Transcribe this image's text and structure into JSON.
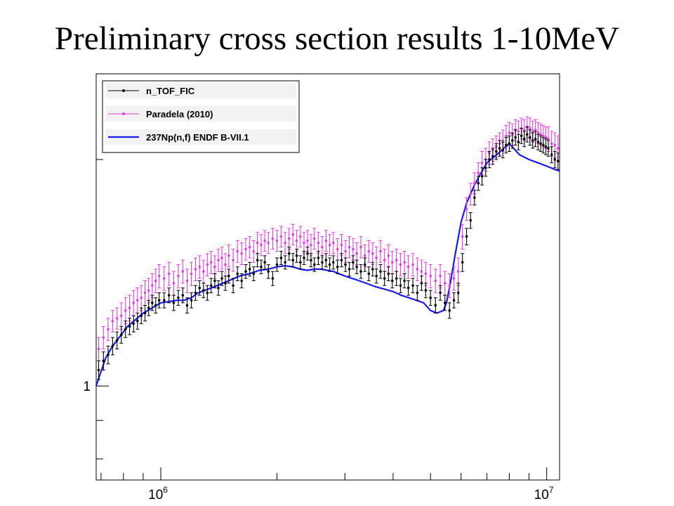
{
  "slide": {
    "title": "Preliminary cross section results 1-10MeV"
  },
  "chart_data": {
    "type": "scatter",
    "title": "Preliminary cross section results 1-10MeV",
    "xlabel": "",
    "ylabel": "",
    "x_scale": "log",
    "y_scale": "log",
    "xlim": [
      680000,
      10800000
    ],
    "ylim": [
      0.75,
      2.6
    ],
    "grid": false,
    "legend_position": "top-left",
    "x_tick_labels": [
      {
        "value": 1000000,
        "base": "10",
        "exp": "6"
      },
      {
        "value": 10000000,
        "base": "10",
        "exp": "7"
      }
    ],
    "y_tick_labels": [
      {
        "value": 1,
        "text": "1"
      }
    ],
    "legend": [
      {
        "name": "n_TOF_FIC",
        "color": "#000000",
        "marker": "point-errorbar"
      },
      {
        "name": "Paradela (2010)",
        "color": "#e040e0",
        "marker": "point-errorbar"
      },
      {
        "name": "237Np(n,f) ENDF B-VII.1",
        "color": "#1a1aee",
        "marker": "line"
      }
    ],
    "series": [
      {
        "name": "237Np(n,f) ENDF B-VII.1",
        "color": "#1a1aee",
        "style": "line",
        "x": [
          680000,
          700000,
          720000,
          750000,
          780000,
          820000,
          860000,
          900000,
          950000,
          1000000,
          1050000,
          1100000,
          1150000,
          1200000,
          1250000,
          1300000,
          1400000,
          1500000,
          1600000,
          1700000,
          1800000,
          1900000,
          2000000,
          2100000,
          2200000,
          2300000,
          2400000,
          2500000,
          2600000,
          2800000,
          3000000,
          3200000,
          3400000,
          3600000,
          3800000,
          4000000,
          4200000,
          4500000,
          4800000,
          5000000,
          5200000,
          5400000,
          5500000,
          5600000,
          5800000,
          6000000,
          6200000,
          6500000,
          6800000,
          7000000,
          7500000,
          8000000,
          8500000,
          9000000,
          9500000,
          10000000,
          10500000,
          10800000
        ],
        "y": [
          1.0,
          1.045,
          1.09,
          1.13,
          1.16,
          1.2,
          1.225,
          1.25,
          1.27,
          1.29,
          1.295,
          1.3,
          1.3,
          1.31,
          1.33,
          1.34,
          1.36,
          1.38,
          1.4,
          1.41,
          1.425,
          1.43,
          1.44,
          1.445,
          1.44,
          1.43,
          1.425,
          1.43,
          1.43,
          1.42,
          1.4,
          1.385,
          1.37,
          1.355,
          1.345,
          1.335,
          1.32,
          1.305,
          1.29,
          1.26,
          1.25,
          1.26,
          1.29,
          1.35,
          1.5,
          1.65,
          1.75,
          1.85,
          1.93,
          1.98,
          2.04,
          2.1,
          2.03,
          2.0,
          1.98,
          1.96,
          1.94,
          1.93
        ]
      },
      {
        "name": "Paradela (2010)",
        "color": "#e040e0",
        "style": "points-errorbars",
        "x": [
          690000,
          710000,
          730000,
          750000,
          770000,
          790000,
          810000,
          830000,
          850000,
          870000,
          890000,
          910000,
          930000,
          950000,
          970000,
          990000,
          1020000,
          1050000,
          1080000,
          1110000,
          1140000,
          1170000,
          1200000,
          1230000,
          1260000,
          1290000,
          1320000,
          1350000,
          1380000,
          1410000,
          1440000,
          1470000,
          1500000,
          1540000,
          1580000,
          1620000,
          1660000,
          1700000,
          1740000,
          1780000,
          1820000,
          1860000,
          1900000,
          1950000,
          2000000,
          2050000,
          2100000,
          2150000,
          2200000,
          2250000,
          2300000,
          2350000,
          2400000,
          2450000,
          2500000,
          2560000,
          2620000,
          2680000,
          2740000,
          2800000,
          2870000,
          2940000,
          3010000,
          3080000,
          3150000,
          3220000,
          3300000,
          3380000,
          3460000,
          3540000,
          3620000,
          3710000,
          3800000,
          3890000,
          3980000,
          4080000,
          4180000,
          4280000,
          4380000,
          4500000,
          4620000,
          4740000,
          4860000,
          5000000,
          5150000,
          5300000,
          5450000,
          5600000,
          5750000,
          5900000,
          6050000,
          6200000,
          6350000,
          6500000,
          6650000,
          6800000,
          6950000,
          7100000,
          7250000,
          7400000,
          7550000,
          7700000,
          7850000,
          8000000,
          8150000,
          8300000,
          8450000,
          8600000,
          8750000,
          8900000,
          9050000,
          9200000,
          9350000,
          9500000,
          9650000,
          9800000,
          9950000,
          10100000,
          10300000,
          10500000,
          10700000
        ],
        "y": [
          1.12,
          1.16,
          1.19,
          1.22,
          1.23,
          1.24,
          1.26,
          1.27,
          1.29,
          1.3,
          1.31,
          1.33,
          1.34,
          1.36,
          1.38,
          1.4,
          1.39,
          1.41,
          1.37,
          1.4,
          1.42,
          1.38,
          1.41,
          1.43,
          1.44,
          1.42,
          1.45,
          1.46,
          1.44,
          1.47,
          1.48,
          1.45,
          1.49,
          1.47,
          1.51,
          1.5,
          1.52,
          1.53,
          1.51,
          1.55,
          1.54,
          1.56,
          1.55,
          1.57,
          1.56,
          1.58,
          1.55,
          1.57,
          1.59,
          1.56,
          1.58,
          1.55,
          1.56,
          1.54,
          1.57,
          1.55,
          1.53,
          1.56,
          1.54,
          1.55,
          1.52,
          1.54,
          1.51,
          1.53,
          1.52,
          1.5,
          1.53,
          1.49,
          1.51,
          1.5,
          1.48,
          1.51,
          1.47,
          1.49,
          1.46,
          1.47,
          1.45,
          1.46,
          1.44,
          1.45,
          1.43,
          1.42,
          1.41,
          1.4,
          1.38,
          1.4,
          1.37,
          1.36,
          1.39,
          1.42,
          1.58,
          1.72,
          1.8,
          1.86,
          1.92,
          1.98,
          2.0,
          2.04,
          2.06,
          2.08,
          2.1,
          2.12,
          2.15,
          2.17,
          2.16,
          2.19,
          2.18,
          2.2,
          2.19,
          2.21,
          2.2,
          2.18,
          2.19,
          2.17,
          2.16,
          2.15,
          2.14,
          2.13,
          2.1,
          2.09,
          2.07
        ],
        "err": [
          0.04,
          0.04,
          0.04,
          0.04,
          0.04,
          0.05,
          0.05,
          0.05,
          0.05,
          0.05,
          0.05,
          0.05,
          0.05,
          0.05,
          0.05,
          0.05,
          0.05,
          0.05,
          0.05,
          0.05,
          0.05,
          0.05,
          0.05,
          0.05,
          0.05,
          0.05,
          0.05,
          0.05,
          0.05,
          0.05,
          0.05,
          0.05,
          0.05,
          0.05,
          0.05,
          0.05,
          0.05,
          0.05,
          0.05,
          0.05,
          0.05,
          0.05,
          0.05,
          0.05,
          0.05,
          0.05,
          0.05,
          0.05,
          0.05,
          0.05,
          0.05,
          0.05,
          0.05,
          0.05,
          0.05,
          0.05,
          0.05,
          0.05,
          0.05,
          0.05,
          0.05,
          0.05,
          0.05,
          0.05,
          0.05,
          0.05,
          0.05,
          0.05,
          0.05,
          0.05,
          0.05,
          0.05,
          0.05,
          0.05,
          0.05,
          0.05,
          0.05,
          0.05,
          0.05,
          0.05,
          0.05,
          0.05,
          0.05,
          0.05,
          0.05,
          0.05,
          0.05,
          0.05,
          0.05,
          0.06,
          0.06,
          0.06,
          0.06,
          0.06,
          0.06,
          0.07,
          0.07,
          0.07,
          0.07,
          0.07,
          0.07,
          0.07,
          0.07,
          0.07,
          0.07,
          0.07,
          0.07,
          0.07,
          0.07,
          0.07,
          0.07,
          0.07,
          0.07,
          0.07,
          0.07,
          0.07,
          0.07,
          0.08,
          0.08,
          0.08,
          0.08
        ]
      },
      {
        "name": "n_TOF_FIC",
        "color": "#000000",
        "style": "points-errorbars",
        "x": [
          690000,
          710000,
          730000,
          750000,
          770000,
          790000,
          810000,
          830000,
          850000,
          870000,
          890000,
          910000,
          930000,
          950000,
          970000,
          990000,
          1020000,
          1050000,
          1080000,
          1110000,
          1140000,
          1170000,
          1200000,
          1230000,
          1260000,
          1290000,
          1320000,
          1350000,
          1380000,
          1410000,
          1440000,
          1470000,
          1500000,
          1540000,
          1580000,
          1620000,
          1660000,
          1700000,
          1740000,
          1780000,
          1820000,
          1860000,
          1900000,
          1950000,
          2000000,
          2050000,
          2100000,
          2150000,
          2200000,
          2250000,
          2300000,
          2350000,
          2400000,
          2450000,
          2500000,
          2560000,
          2620000,
          2680000,
          2740000,
          2800000,
          2870000,
          2940000,
          3010000,
          3080000,
          3150000,
          3220000,
          3300000,
          3380000,
          3460000,
          3540000,
          3620000,
          3710000,
          3800000,
          3890000,
          3980000,
          4080000,
          4180000,
          4280000,
          4380000,
          4500000,
          4620000,
          4740000,
          4860000,
          5000000,
          5150000,
          5300000,
          5450000,
          5600000,
          5750000,
          5900000,
          6050000,
          6200000,
          6350000,
          6500000,
          6650000,
          6800000,
          6950000,
          7100000,
          7250000,
          7400000,
          7550000,
          7700000,
          7850000,
          8000000,
          8150000,
          8300000,
          8450000,
          8600000,
          8750000,
          8900000,
          9050000,
          9200000,
          9350000,
          9500000,
          9650000,
          9800000,
          9950000,
          10100000,
          10300000,
          10500000,
          10700000
        ],
        "y": [
          1.05,
          1.08,
          1.1,
          1.13,
          1.15,
          1.17,
          1.19,
          1.2,
          1.21,
          1.22,
          1.24,
          1.25,
          1.27,
          1.29,
          1.28,
          1.3,
          1.3,
          1.32,
          1.29,
          1.31,
          1.32,
          1.28,
          1.3,
          1.33,
          1.35,
          1.34,
          1.33,
          1.36,
          1.38,
          1.35,
          1.39,
          1.37,
          1.4,
          1.36,
          1.41,
          1.38,
          1.42,
          1.43,
          1.41,
          1.47,
          1.44,
          1.46,
          1.42,
          1.39,
          1.45,
          1.48,
          1.46,
          1.5,
          1.47,
          1.49,
          1.46,
          1.48,
          1.5,
          1.47,
          1.45,
          1.48,
          1.46,
          1.47,
          1.45,
          1.46,
          1.44,
          1.47,
          1.45,
          1.43,
          1.46,
          1.44,
          1.42,
          1.45,
          1.41,
          1.43,
          1.4,
          1.42,
          1.39,
          1.41,
          1.38,
          1.39,
          1.36,
          1.38,
          1.35,
          1.36,
          1.33,
          1.37,
          1.34,
          1.31,
          1.28,
          1.33,
          1.29,
          1.26,
          1.3,
          1.33,
          1.46,
          1.58,
          1.66,
          1.78,
          1.86,
          1.9,
          1.95,
          2.0,
          2.02,
          2.05,
          2.07,
          2.06,
          2.09,
          2.1,
          2.12,
          2.14,
          2.11,
          2.15,
          2.13,
          2.16,
          2.14,
          2.12,
          2.13,
          2.11,
          2.1,
          2.09,
          2.08,
          2.07,
          2.03,
          2.0,
          1.99
        ],
        "err": [
          0.03,
          0.03,
          0.03,
          0.03,
          0.03,
          0.03,
          0.03,
          0.03,
          0.03,
          0.03,
          0.03,
          0.03,
          0.03,
          0.03,
          0.03,
          0.03,
          0.03,
          0.03,
          0.03,
          0.03,
          0.03,
          0.03,
          0.03,
          0.03,
          0.03,
          0.03,
          0.03,
          0.03,
          0.03,
          0.03,
          0.03,
          0.03,
          0.03,
          0.03,
          0.03,
          0.03,
          0.03,
          0.03,
          0.03,
          0.03,
          0.03,
          0.03,
          0.03,
          0.03,
          0.03,
          0.03,
          0.03,
          0.03,
          0.03,
          0.03,
          0.03,
          0.03,
          0.03,
          0.03,
          0.03,
          0.03,
          0.03,
          0.03,
          0.03,
          0.03,
          0.03,
          0.03,
          0.03,
          0.03,
          0.03,
          0.03,
          0.03,
          0.03,
          0.03,
          0.03,
          0.03,
          0.03,
          0.03,
          0.03,
          0.03,
          0.03,
          0.03,
          0.03,
          0.03,
          0.03,
          0.03,
          0.03,
          0.03,
          0.03,
          0.03,
          0.03,
          0.03,
          0.03,
          0.03,
          0.04,
          0.04,
          0.04,
          0.04,
          0.04,
          0.04,
          0.05,
          0.05,
          0.05,
          0.05,
          0.05,
          0.05,
          0.05,
          0.05,
          0.05,
          0.05,
          0.05,
          0.05,
          0.05,
          0.05,
          0.05,
          0.05,
          0.05,
          0.05,
          0.05,
          0.05,
          0.05,
          0.05,
          0.05,
          0.05,
          0.05,
          0.05
        ]
      }
    ]
  }
}
